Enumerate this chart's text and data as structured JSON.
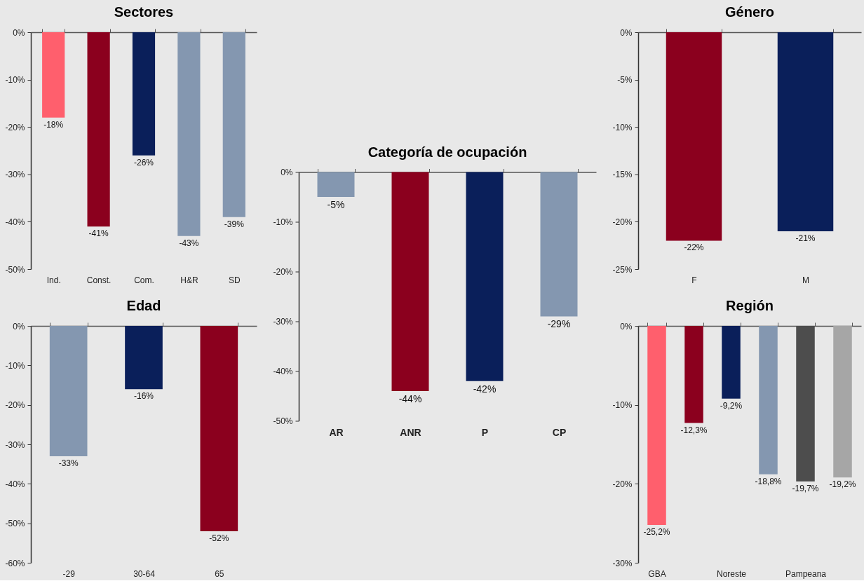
{
  "chart_data": [
    {
      "type": "bar",
      "title": "Sectores",
      "categories": [
        "Ind.",
        "Const.",
        "Com.",
        "H&R",
        "SD"
      ],
      "values": [
        -18,
        -41,
        -26,
        -43,
        -39
      ],
      "value_labels": [
        "-18%",
        "-41%",
        "-26%",
        "-43%",
        "-39%"
      ],
      "colors": [
        "#ff5f6d",
        "#8b001e",
        "#0a1f5a",
        "#8497b0",
        "#8497b0"
      ],
      "ylim": [
        -50,
        0
      ],
      "yticks": [
        {
          "value": 0,
          "label": "0%"
        },
        {
          "value": -10,
          "label": "-10%"
        },
        {
          "value": -20,
          "label": "-20%"
        },
        {
          "value": -30,
          "label": "-30%"
        },
        {
          "value": -40,
          "label": "-40%"
        },
        {
          "value": -50,
          "label": "-50%"
        }
      ]
    },
    {
      "type": "bar",
      "title": "Género",
      "categories": [
        "F",
        "M"
      ],
      "values": [
        -22,
        -21
      ],
      "value_labels": [
        "-22%",
        "-21%"
      ],
      "colors": [
        "#8b001e",
        "#0a1f5a"
      ],
      "ylim": [
        -25,
        0
      ],
      "yticks": [
        {
          "value": 0,
          "label": "0%"
        },
        {
          "value": -5,
          "label": "-5%"
        },
        {
          "value": -10,
          "label": "-10%"
        },
        {
          "value": -15,
          "label": "-15%"
        },
        {
          "value": -20,
          "label": "-20%"
        },
        {
          "value": -25,
          "label": "-25%"
        }
      ]
    },
    {
      "type": "bar",
      "title": "Categoría de ocupación",
      "categories": [
        "AR",
        "ANR",
        "P",
        "CP"
      ],
      "values": [
        -5,
        -44,
        -42,
        -29
      ],
      "value_labels": [
        "-5%",
        "-44%",
        "-42%",
        "-29%"
      ],
      "colors": [
        "#8497b0",
        "#8b001e",
        "#0a1f5a",
        "#8497b0"
      ],
      "ylim": [
        -50,
        0
      ],
      "yticks": [
        {
          "value": 0,
          "label": "0%"
        },
        {
          "value": -10,
          "label": "-10%"
        },
        {
          "value": -20,
          "label": "-20%"
        },
        {
          "value": -30,
          "label": "-30%"
        },
        {
          "value": -40,
          "label": "-40%"
        },
        {
          "value": -50,
          "label": "-50%"
        }
      ]
    },
    {
      "type": "bar",
      "title": "Edad",
      "categories": [
        "-29",
        "30-64",
        "65"
      ],
      "values": [
        -33,
        -16,
        -52
      ],
      "value_labels": [
        "-33%",
        "-16%",
        "-52%"
      ],
      "colors": [
        "#8497b0",
        "#0a1f5a",
        "#8b001e"
      ],
      "ylim": [
        -60,
        0
      ],
      "yticks": [
        {
          "value": 0,
          "label": "0%"
        },
        {
          "value": -10,
          "label": "-10%"
        },
        {
          "value": -20,
          "label": "-20%"
        },
        {
          "value": -30,
          "label": "-30%"
        },
        {
          "value": -40,
          "label": "-40%"
        },
        {
          "value": -50,
          "label": "-50%"
        },
        {
          "value": -60,
          "label": "-60%"
        }
      ]
    },
    {
      "type": "bar",
      "title": "Región",
      "categories": [
        "GBA",
        null,
        "Noreste",
        null,
        "Pampeana",
        null
      ],
      "values": [
        -25.2,
        -12.3,
        -9.2,
        -18.8,
        -19.7,
        -19.2
      ],
      "value_labels": [
        "-25,2%",
        "-12,3%",
        "-9,2%",
        "-18,8%",
        "-19,7%",
        "-19,2%"
      ],
      "colors": [
        "#ff5f6d",
        "#8b001e",
        "#0a1f5a",
        "#8497b0",
        "#4d4d4d",
        "#a6a6a6"
      ],
      "ylim": [
        -30,
        0
      ],
      "yticks": [
        {
          "value": 0,
          "label": "0%"
        },
        {
          "value": -10,
          "label": "-10%"
        },
        {
          "value": -20,
          "label": "-20%"
        },
        {
          "value": -30,
          "label": "-30%"
        }
      ]
    }
  ]
}
